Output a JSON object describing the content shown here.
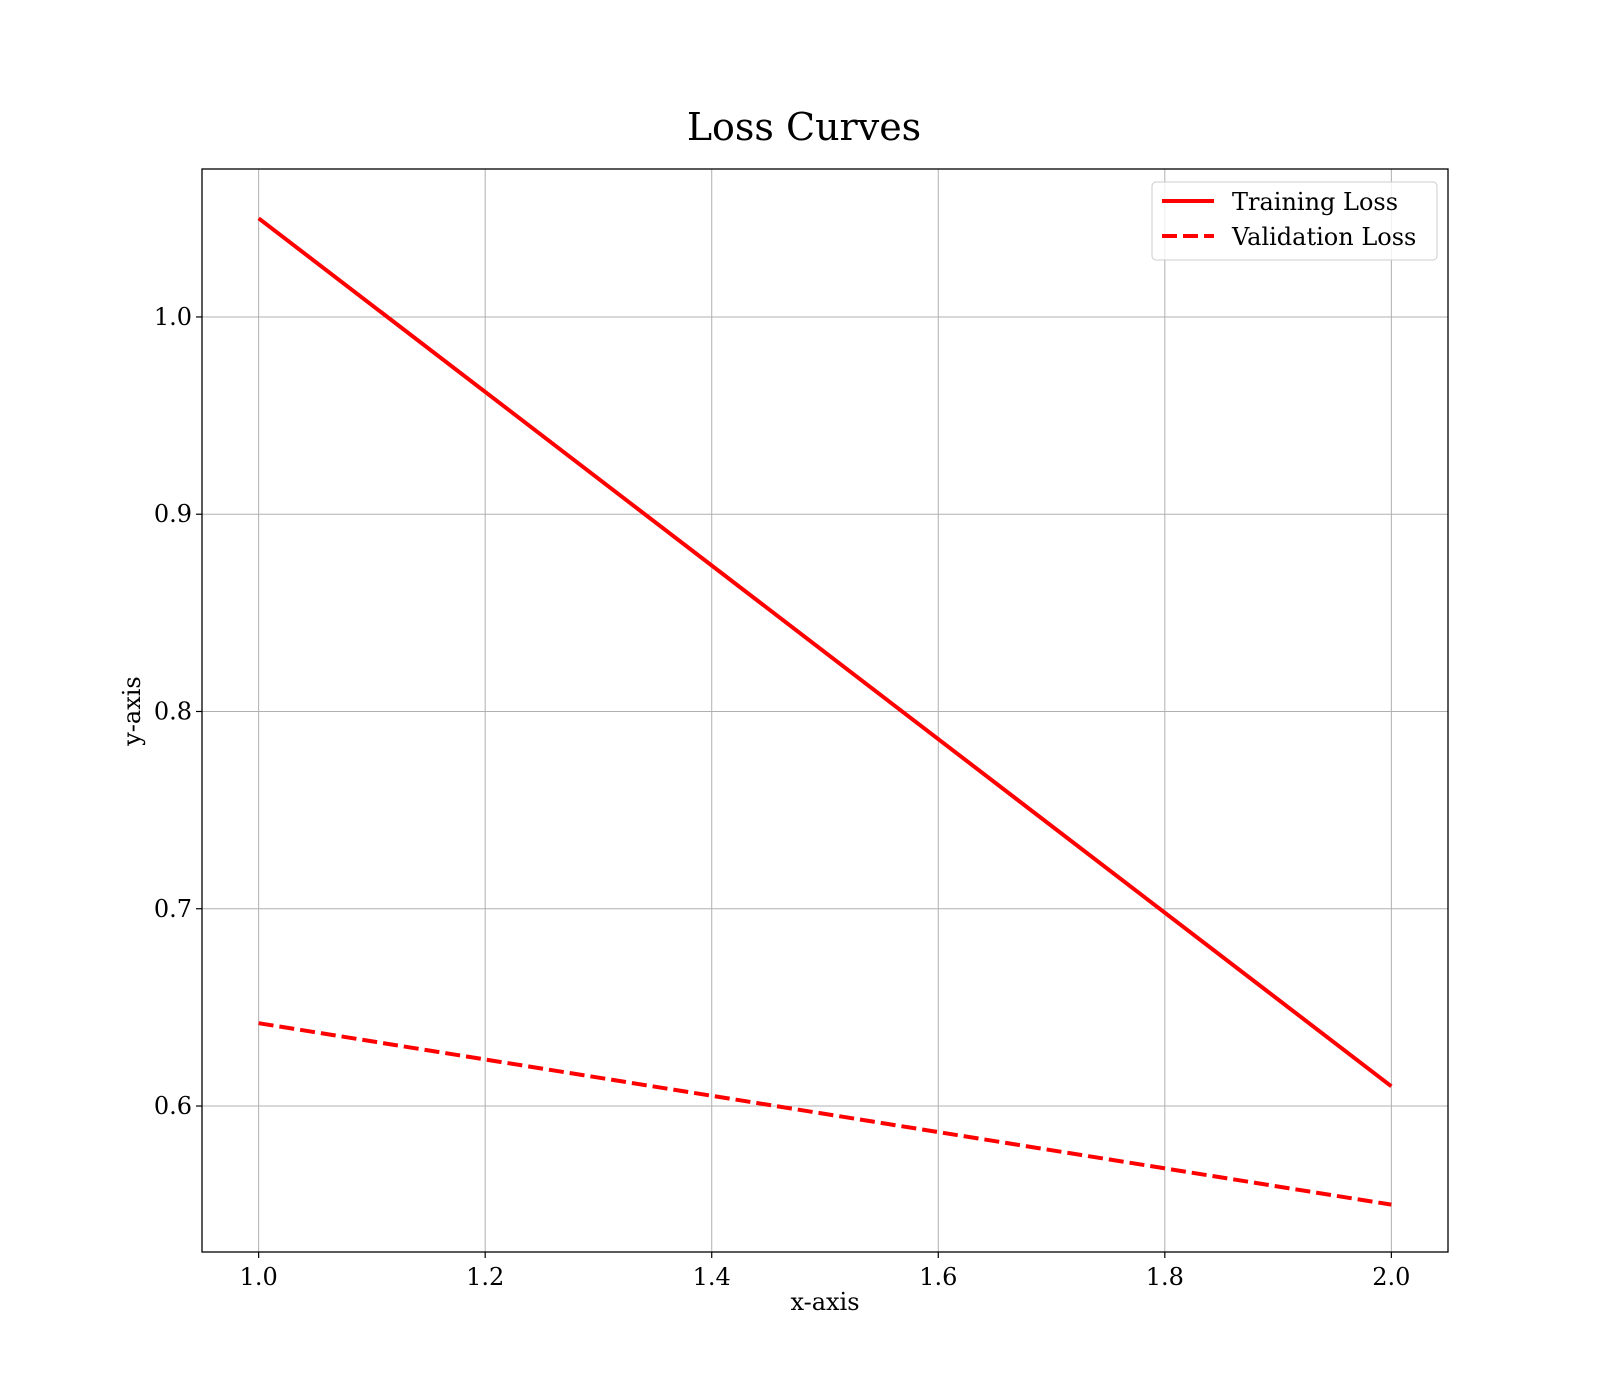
{
  "chart_data": {
    "type": "line",
    "title": "Loss Curves",
    "xlabel": "x-axis",
    "ylabel": "y-axis",
    "xlim": [
      0.95,
      2.05
    ],
    "ylim": [
      0.526,
      1.075
    ],
    "x_ticks": [
      1.0,
      1.2,
      1.4,
      1.6,
      1.8,
      2.0
    ],
    "x_tick_labels": [
      "1.0",
      "1.2",
      "1.4",
      "1.6",
      "1.8",
      "2.0"
    ],
    "y_ticks": [
      0.6,
      0.7,
      0.8,
      0.9,
      1.0
    ],
    "y_tick_labels": [
      "0.6",
      "0.7",
      "0.8",
      "0.9",
      "1.0"
    ],
    "grid": true,
    "legend_position": "top-right",
    "x": [
      1.0,
      2.0
    ],
    "series": [
      {
        "name": "Training Loss",
        "values": [
          1.05,
          0.61
        ],
        "color": "#ff0000",
        "style": "solid"
      },
      {
        "name": "Validation Loss",
        "values": [
          0.642,
          0.55
        ],
        "color": "#ff0000",
        "style": "dashed"
      }
    ]
  }
}
